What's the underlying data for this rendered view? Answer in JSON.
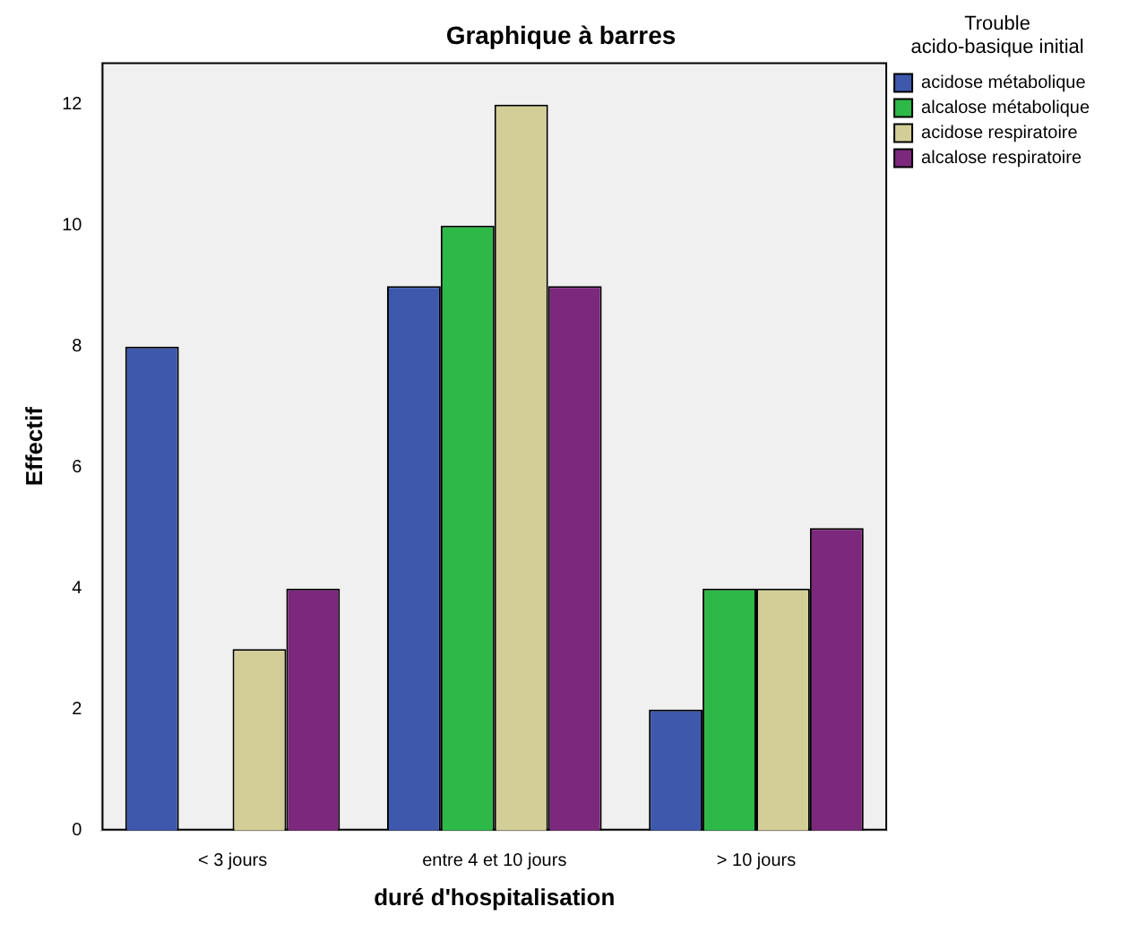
{
  "chart_data": {
    "type": "bar",
    "title": "Graphique à barres",
    "xlabel": "duré d'hospitalisation",
    "ylabel": "Effectif",
    "legend_title": "Trouble acido-basique initial",
    "categories": [
      "< 3 jours",
      "entre 4 et 10 jours",
      "> 10 jours"
    ],
    "series": [
      {
        "name": "acidose métabolique",
        "color": "#3e58ac",
        "values": [
          8,
          9,
          2
        ]
      },
      {
        "name": "alcalose métabolique",
        "color": "#2eb848",
        "values": [
          0,
          10,
          4
        ]
      },
      {
        "name": "acidose respiratoire",
        "color": "#d3ce97",
        "values": [
          3,
          12,
          4
        ]
      },
      {
        "name": "alcalose respiratoire",
        "color": "#7c287d",
        "values": [
          4,
          9,
          5
        ]
      }
    ],
    "ylim": [
      0,
      12.7
    ],
    "yticks": [
      0,
      2,
      4,
      6,
      8,
      10,
      12
    ],
    "grid": false,
    "legend": "top right"
  }
}
